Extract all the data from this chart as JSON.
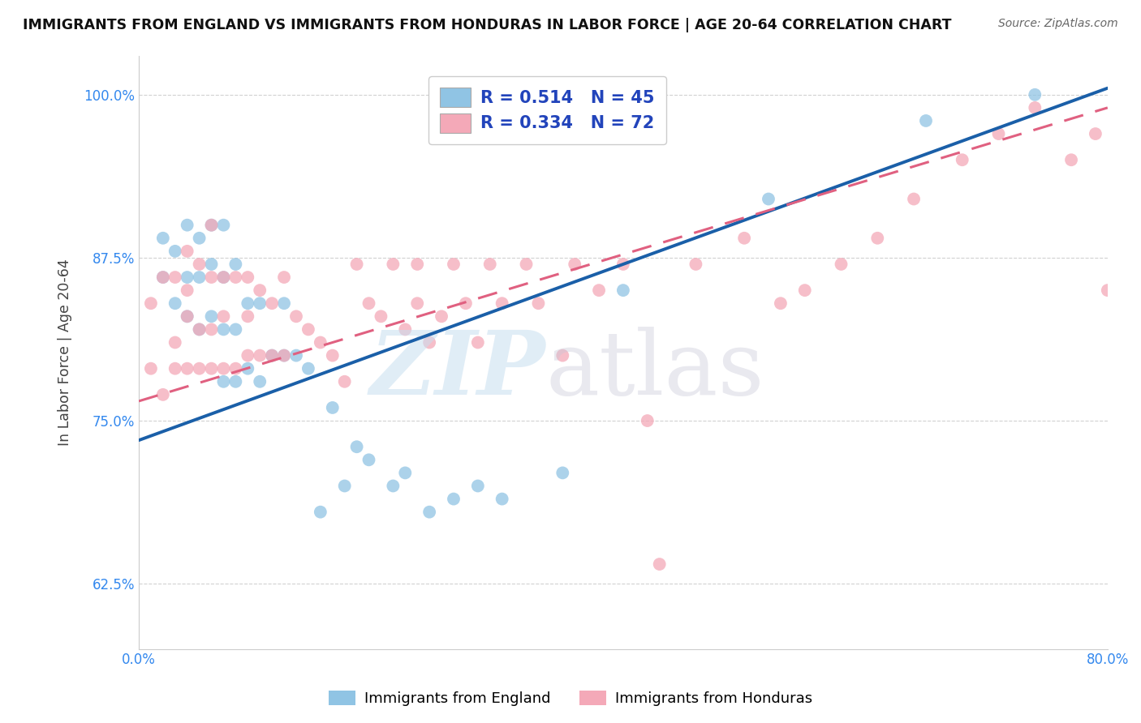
{
  "title": "IMMIGRANTS FROM ENGLAND VS IMMIGRANTS FROM HONDURAS IN LABOR FORCE | AGE 20-64 CORRELATION CHART",
  "source": "Source: ZipAtlas.com",
  "xlabel": "",
  "ylabel": "In Labor Force | Age 20-64",
  "xlim": [
    0.0,
    0.8
  ],
  "ylim": [
    0.575,
    1.03
  ],
  "x_ticks": [
    0.0,
    0.2,
    0.4,
    0.6,
    0.8
  ],
  "x_tick_labels": [
    "0.0%",
    "",
    "",
    "",
    "80.0%"
  ],
  "y_ticks": [
    0.625,
    0.75,
    0.875,
    1.0
  ],
  "y_tick_labels": [
    "62.5%",
    "75.0%",
    "87.5%",
    "100.0%"
  ],
  "england_R": 0.514,
  "england_N": 45,
  "honduras_R": 0.334,
  "honduras_N": 72,
  "england_color": "#90c4e4",
  "honduras_color": "#f4a9b8",
  "england_line_color": "#1a5fa8",
  "honduras_line_color": "#e06080",
  "england_x": [
    0.02,
    0.02,
    0.03,
    0.03,
    0.04,
    0.04,
    0.04,
    0.05,
    0.05,
    0.05,
    0.06,
    0.06,
    0.06,
    0.07,
    0.07,
    0.07,
    0.07,
    0.08,
    0.08,
    0.08,
    0.09,
    0.09,
    0.1,
    0.1,
    0.11,
    0.12,
    0.12,
    0.13,
    0.14,
    0.15,
    0.16,
    0.17,
    0.18,
    0.19,
    0.21,
    0.22,
    0.24,
    0.26,
    0.28,
    0.3,
    0.35,
    0.4,
    0.52,
    0.65,
    0.74
  ],
  "england_y": [
    0.86,
    0.89,
    0.84,
    0.88,
    0.83,
    0.86,
    0.9,
    0.82,
    0.86,
    0.89,
    0.83,
    0.87,
    0.9,
    0.78,
    0.82,
    0.86,
    0.9,
    0.78,
    0.82,
    0.87,
    0.79,
    0.84,
    0.78,
    0.84,
    0.8,
    0.8,
    0.84,
    0.8,
    0.79,
    0.68,
    0.76,
    0.7,
    0.73,
    0.72,
    0.7,
    0.71,
    0.68,
    0.69,
    0.7,
    0.69,
    0.71,
    0.85,
    0.92,
    0.98,
    1.0
  ],
  "honduras_x": [
    0.01,
    0.01,
    0.02,
    0.02,
    0.03,
    0.03,
    0.03,
    0.04,
    0.04,
    0.04,
    0.04,
    0.05,
    0.05,
    0.05,
    0.06,
    0.06,
    0.06,
    0.06,
    0.07,
    0.07,
    0.07,
    0.08,
    0.08,
    0.09,
    0.09,
    0.09,
    0.1,
    0.1,
    0.11,
    0.11,
    0.12,
    0.12,
    0.13,
    0.14,
    0.15,
    0.16,
    0.17,
    0.18,
    0.19,
    0.2,
    0.21,
    0.22,
    0.23,
    0.23,
    0.24,
    0.25,
    0.26,
    0.27,
    0.28,
    0.29,
    0.3,
    0.32,
    0.33,
    0.35,
    0.36,
    0.38,
    0.4,
    0.42,
    0.43,
    0.46,
    0.5,
    0.53,
    0.55,
    0.58,
    0.61,
    0.64,
    0.68,
    0.71,
    0.74,
    0.77,
    0.79,
    0.8
  ],
  "honduras_y": [
    0.79,
    0.84,
    0.77,
    0.86,
    0.79,
    0.81,
    0.86,
    0.79,
    0.83,
    0.85,
    0.88,
    0.79,
    0.82,
    0.87,
    0.79,
    0.82,
    0.86,
    0.9,
    0.79,
    0.83,
    0.86,
    0.79,
    0.86,
    0.8,
    0.83,
    0.86,
    0.8,
    0.85,
    0.8,
    0.84,
    0.8,
    0.86,
    0.83,
    0.82,
    0.81,
    0.8,
    0.78,
    0.87,
    0.84,
    0.83,
    0.87,
    0.82,
    0.87,
    0.84,
    0.81,
    0.83,
    0.87,
    0.84,
    0.81,
    0.87,
    0.84,
    0.87,
    0.84,
    0.8,
    0.87,
    0.85,
    0.87,
    0.75,
    0.64,
    0.87,
    0.89,
    0.84,
    0.85,
    0.87,
    0.89,
    0.92,
    0.95,
    0.97,
    0.99,
    0.95,
    0.97,
    0.85
  ],
  "eng_line_x0": 0.0,
  "eng_line_y0": 0.735,
  "eng_line_x1": 0.8,
  "eng_line_y1": 1.005,
  "hon_line_x0": 0.0,
  "hon_line_y0": 0.765,
  "hon_line_x1": 0.8,
  "hon_line_y1": 0.99
}
